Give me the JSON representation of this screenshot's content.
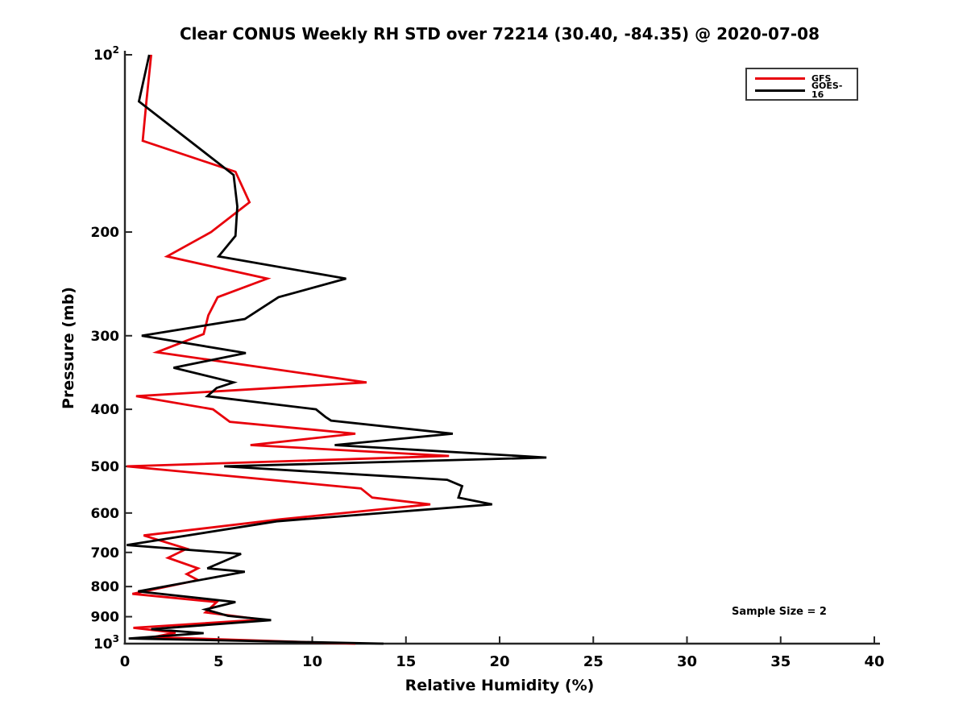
{
  "figure": {
    "title": "Clear CONUS Weekly RH STD over 72214 (30.40, -84.35) @ 2020-07-08",
    "xlabel": "Relative Humidity (%)",
    "ylabel": "Pressure (mb)",
    "annotation": "Sample Size = 2"
  },
  "colors": {
    "axis": "#262626",
    "text": "#000000",
    "background": "#ffffff",
    "gfs": "#e8000b",
    "goes16": "#000000"
  },
  "chart_data": {
    "type": "line",
    "title": "Clear CONUS Weekly RH STD over 72214 (30.40, -84.35) @ 2020-07-08",
    "xlabel": "Relative Humidity (%)",
    "ylabel": "Pressure (mb)",
    "annotation": "Sample Size = 2",
    "grid": false,
    "x_axis": {
      "min": 0,
      "max": 40,
      "ticks": [
        0,
        5,
        10,
        15,
        20,
        25,
        30,
        35,
        40
      ]
    },
    "y_axis": {
      "scale": "log",
      "min": 100,
      "max": 1000,
      "direction": "increasing-downward",
      "ticks": [
        {
          "v": 100,
          "label": "10^2"
        },
        {
          "v": 200,
          "label": "200"
        },
        {
          "v": 300,
          "label": "300"
        },
        {
          "v": 400,
          "label": "400"
        },
        {
          "v": 500,
          "label": "500"
        },
        {
          "v": 600,
          "label": "600"
        },
        {
          "v": 700,
          "label": "700"
        },
        {
          "v": 800,
          "label": "800"
        },
        {
          "v": 900,
          "label": "900"
        },
        {
          "v": 1000,
          "label": "10^3"
        }
      ]
    },
    "legend": {
      "position": "top-right",
      "entries": [
        "GFS",
        "GOES-16"
      ]
    },
    "series": [
      {
        "name": "GFS",
        "color": "#e8000b",
        "width": 2.8,
        "points_format": [
          "pressure_mb",
          "rh_std_percent"
        ],
        "points": [
          [
            100,
            1.4
          ],
          [
            120,
            1.15
          ],
          [
            140,
            0.95
          ],
          [
            158,
            5.9
          ],
          [
            178,
            6.65
          ],
          [
            200,
            4.6
          ],
          [
            220,
            2.25
          ],
          [
            240,
            7.6
          ],
          [
            258,
            4.95
          ],
          [
            277,
            4.45
          ],
          [
            298,
            4.2
          ],
          [
            320,
            1.7
          ],
          [
            360,
            12.9
          ],
          [
            380,
            0.6
          ],
          [
            400,
            4.7
          ],
          [
            420,
            5.6
          ],
          [
            440,
            12.3
          ],
          [
            460,
            6.7
          ],
          [
            480,
            17.3
          ],
          [
            500,
            0.1
          ],
          [
            545,
            12.6
          ],
          [
            565,
            13.2
          ],
          [
            580,
            16.3
          ],
          [
            615,
            8.3
          ],
          [
            655,
            1.0
          ],
          [
            690,
            3.3
          ],
          [
            715,
            2.3
          ],
          [
            745,
            3.9
          ],
          [
            762,
            3.3
          ],
          [
            780,
            3.9
          ],
          [
            823,
            0.4
          ],
          [
            850,
            4.9
          ],
          [
            885,
            4.3
          ],
          [
            910,
            7.3
          ],
          [
            940,
            0.45
          ],
          [
            958,
            2.7
          ],
          [
            975,
            1.5
          ],
          [
            1000,
            12.3
          ]
        ]
      },
      {
        "name": "GOES-16",
        "color": "#000000",
        "width": 2.8,
        "points_format": [
          "pressure_mb",
          "rh_std_percent"
        ],
        "points": [
          [
            100,
            1.3
          ],
          [
            120,
            0.75
          ],
          [
            160,
            5.8
          ],
          [
            181,
            6.0
          ],
          [
            203,
            5.9
          ],
          [
            220,
            5.0
          ],
          [
            240,
            11.8
          ],
          [
            258,
            8.2
          ],
          [
            281,
            6.4
          ],
          [
            300,
            0.9
          ],
          [
            321,
            6.45
          ],
          [
            340,
            2.6
          ],
          [
            360,
            5.8
          ],
          [
            368,
            4.9
          ],
          [
            380,
            4.4
          ],
          [
            400,
            10.2
          ],
          [
            412,
            10.7
          ],
          [
            418,
            11.0
          ],
          [
            440,
            17.5
          ],
          [
            460,
            11.2
          ],
          [
            483,
            22.5
          ],
          [
            500,
            5.3
          ],
          [
            527,
            17.2
          ],
          [
            540,
            18.0
          ],
          [
            565,
            17.8
          ],
          [
            580,
            19.6
          ],
          [
            620,
            8.1
          ],
          [
            680,
            0.1
          ],
          [
            704,
            6.2
          ],
          [
            745,
            4.4
          ],
          [
            755,
            6.4
          ],
          [
            815,
            0.7
          ],
          [
            850,
            5.9
          ],
          [
            875,
            4.3
          ],
          [
            897,
            5.5
          ],
          [
            912,
            7.8
          ],
          [
            945,
            1.4
          ],
          [
            960,
            4.2
          ],
          [
            980,
            0.2
          ],
          [
            1000,
            13.8
          ]
        ]
      }
    ]
  }
}
